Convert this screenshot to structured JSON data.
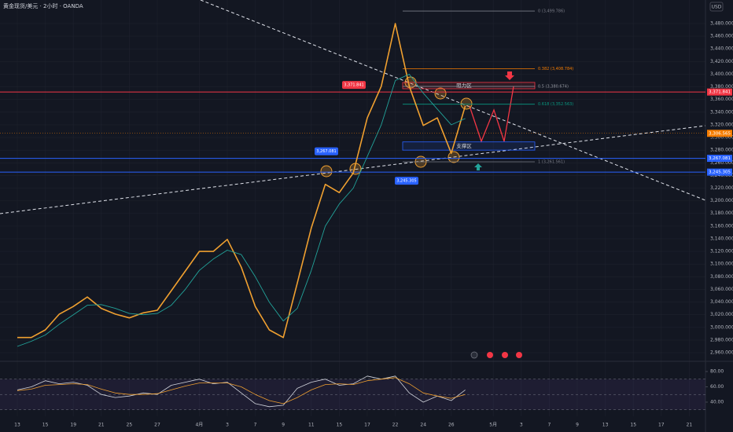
{
  "chart_data": [
    {
      "type": "line",
      "title": "黄金现货/美元 · 2小时 · OANDA",
      "currency": "USD",
      "categories": [
        "13",
        null,
        "15",
        null,
        "19",
        null,
        "21",
        null,
        "25",
        null,
        "27",
        null,
        null,
        "4月",
        null,
        "3",
        null,
        "7",
        null,
        "9",
        null,
        "11",
        null,
        "15",
        null,
        "17",
        null,
        "22",
        null,
        "24",
        null,
        "26",
        null,
        null,
        "5月",
        null,
        "3",
        null,
        "7",
        null,
        "9",
        null,
        "13",
        null,
        "15",
        null,
        "17",
        null,
        "21"
      ],
      "series": [
        {
          "color": "#f0a030",
          "values": [
            2984,
            2984,
            2996,
            3021,
            3033,
            3048,
            3030,
            3021,
            3015,
            3023,
            3027,
            3058,
            3089,
            3120,
            3120,
            3139,
            3095,
            3033,
            2996,
            2984,
            3070,
            3157,
            3226,
            3213,
            3244,
            3331,
            3381,
            3480,
            3381,
            3319,
            3331,
            3275,
            3350,
            null,
            null,
            null,
            null,
            null,
            null,
            null,
            null,
            null,
            null,
            null,
            null,
            null,
            null,
            null,
            null
          ]
        },
        {
          "color": "#22a39a",
          "values": [
            2970,
            2978,
            2988,
            3005,
            3020,
            3035,
            3036,
            3030,
            3022,
            3020,
            3022,
            3035,
            3060,
            3090,
            3108,
            3122,
            3115,
            3080,
            3040,
            3010,
            3030,
            3090,
            3160,
            3195,
            3220,
            3270,
            3320,
            3390,
            3400,
            3370,
            3345,
            3320,
            3330,
            null,
            null,
            null,
            null,
            null,
            null,
            null,
            null,
            null,
            null,
            null,
            null,
            null,
            null,
            null,
            null
          ]
        }
      ],
      "ylim": [
        2952.6,
        3504.8
      ],
      "yticks": [
        {
          "value": 3480,
          "label": "3,480.000"
        },
        {
          "value": 3460,
          "label": "3,460.000"
        },
        {
          "value": 3440,
          "label": "3,440.000"
        },
        {
          "value": 3420,
          "label": "3,420.000"
        },
        {
          "value": 3400,
          "label": "3,400.000"
        },
        {
          "value": 3380,
          "label": "3,380.000"
        },
        {
          "value": 3360,
          "label": "3,360.000"
        },
        {
          "value": 3340,
          "label": "3,340.000"
        },
        {
          "value": 3320,
          "label": "3,320.000"
        },
        {
          "value": 3300,
          "label": "3,300.000"
        },
        {
          "value": 3280,
          "label": "3,280.000"
        },
        {
          "value": 3260,
          "label": "3,260.000"
        },
        {
          "value": 3240,
          "label": "3,240.000"
        },
        {
          "value": 3220,
          "label": "3,220.000"
        },
        {
          "value": 3200,
          "label": "3,200.000"
        },
        {
          "value": 3180,
          "label": "3,180.000"
        },
        {
          "value": 3160,
          "label": "3,160.000"
        },
        {
          "value": 3140,
          "label": "3,140.000"
        },
        {
          "value": 3120,
          "label": "3,120.000"
        },
        {
          "value": 3100,
          "label": "3,100.000"
        },
        {
          "value": 3080,
          "label": "3,080.000"
        },
        {
          "value": 3060,
          "label": "3,060.000"
        },
        {
          "value": 3040,
          "label": "3,040.000"
        },
        {
          "value": 3020,
          "label": "3,020.000"
        },
        {
          "value": 3000,
          "label": "3,000.000"
        },
        {
          "value": 2980,
          "label": "2,980.000"
        },
        {
          "value": 2960,
          "label": "2,960.000"
        }
      ],
      "fib_levels": [
        {
          "value": 3499.786,
          "label": "0 (3,499.786)",
          "color": "#787b86"
        },
        {
          "value": 3408.784,
          "label": "0.382 (3,408.784)",
          "color": "#f57c00"
        },
        {
          "value": 3380.674,
          "label": "0.5 (3,380.674)",
          "color": "#9598a1"
        },
        {
          "value": 3352.563,
          "label": "0.618 (3,352.563)",
          "color": "#089981"
        },
        {
          "value": 3261.561,
          "label": "1 (3,261.561)",
          "color": "#787b86"
        }
      ],
      "hlines": [
        {
          "value": 3371.841,
          "label": "3,371.841",
          "color": "#f23645"
        },
        {
          "value": 3267.081,
          "label": "3,267.081",
          "color": "#2962ff"
        },
        {
          "value": 3245.305,
          "label": "3,245.305",
          "color": "#2962ff"
        }
      ],
      "last_price": {
        "value": 3306.565,
        "label": "3,306.565",
        "color": "#f57c00"
      },
      "zones": [
        {
          "range": [
            3377,
            3387
          ],
          "label": "阻力区",
          "color": "#f23645"
        },
        {
          "range": [
            3280,
            3293
          ],
          "label": "支撑区",
          "color": "#2962ff"
        }
      ]
    },
    {
      "type": "line",
      "series": [
        {
          "color": "#d1d4dc",
          "values": [
            56,
            60,
            68,
            64,
            66,
            62,
            50,
            46,
            48,
            52,
            50,
            62,
            66,
            70,
            64,
            66,
            52,
            38,
            34,
            36,
            58,
            66,
            70,
            62,
            64,
            74,
            70,
            74,
            52,
            40,
            48,
            42,
            56,
            null,
            null,
            null,
            null,
            null,
            null,
            null,
            null,
            null,
            null,
            null,
            null,
            null,
            null,
            null,
            null
          ]
        },
        {
          "color": "#f0a030",
          "values": [
            55,
            57,
            62,
            63,
            64,
            63,
            57,
            52,
            50,
            50,
            51,
            56,
            61,
            65,
            65,
            65,
            60,
            50,
            42,
            38,
            46,
            56,
            63,
            64,
            63,
            68,
            70,
            72,
            64,
            52,
            48,
            45,
            50,
            null,
            null,
            null,
            null,
            null,
            null,
            null,
            null,
            null,
            null,
            null,
            null,
            null,
            null,
            null,
            null
          ]
        }
      ],
      "ylim": [
        29.7,
        88.2
      ],
      "yticks": [
        {
          "value": 80,
          "label": "80.00"
        },
        {
          "value": 60,
          "label": "60.00"
        },
        {
          "value": 40,
          "label": "40.00"
        }
      ],
      "band": [
        30,
        70
      ],
      "midline": 50
    }
  ]
}
